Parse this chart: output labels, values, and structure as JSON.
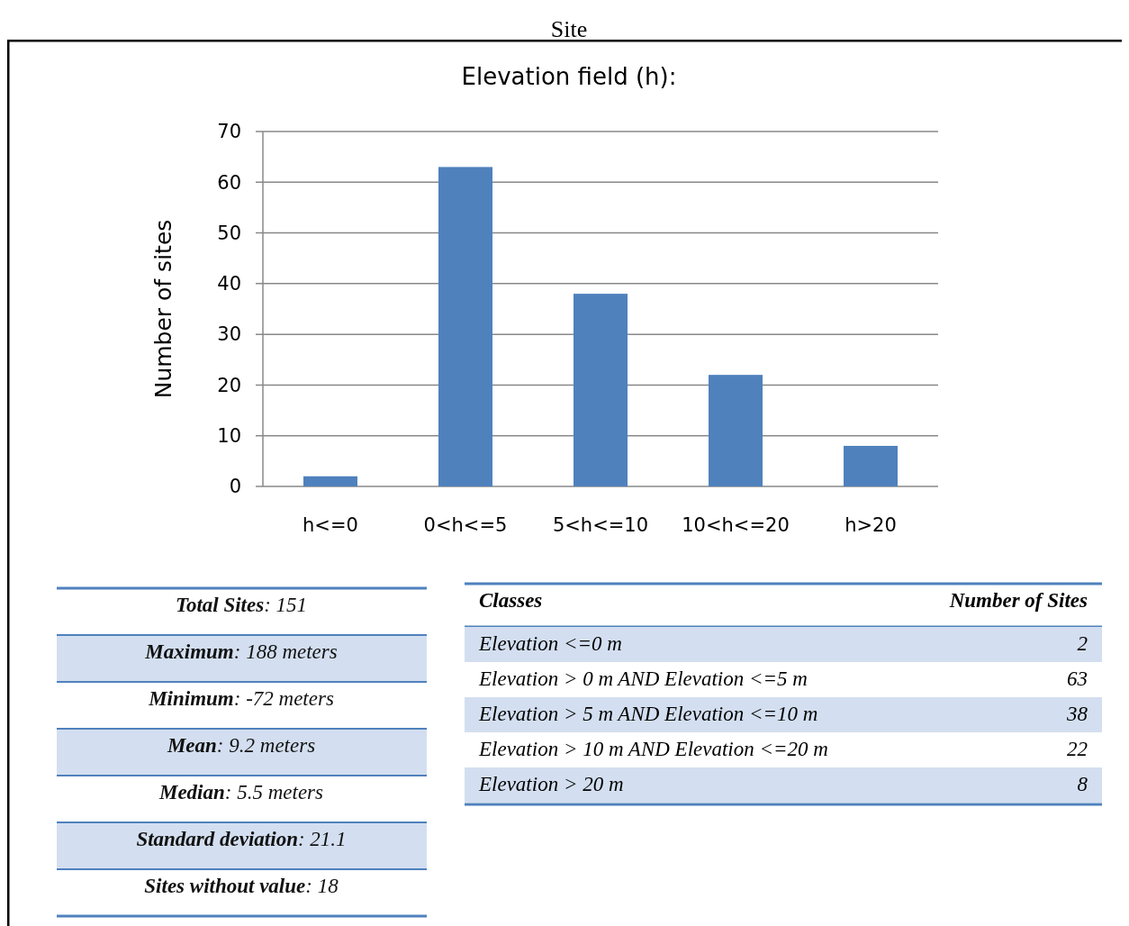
{
  "chart_data": {
    "type": "bar",
    "title": "Site",
    "subtitle": "Elevation field (h):",
    "ylabel": "Number of sites",
    "categories": [
      "h<=0",
      "0<h<=5",
      "5<h<=10",
      "10<h<=20",
      "h>20"
    ],
    "values": [
      2,
      63,
      38,
      22,
      8
    ],
    "color": "#4f81bd",
    "ylim": [
      0,
      70
    ],
    "yticks": [
      0,
      10,
      20,
      30,
      40,
      50,
      60,
      70
    ],
    "grid": "y",
    "annotations": [
      "Total Sites: 151",
      "Maximum: 188 meters",
      "Minimum: -72 meters",
      "Mean: 9.2 meters",
      "Median: 5.5 meters",
      "Standard deviation: 21.1",
      "Sites without value: 18",
      "Classes",
      "Number of Sites",
      "Elevation <=0 m",
      "Elevation > 0 m AND Elevation <=5 m",
      "Elevation > 5  m AND Elevation <=10 m",
      "Elevation > 10  m AND Elevation <=20 m",
      "Elevation > 20 m",
      "2",
      "63",
      "38",
      "22",
      "8"
    ]
  }
}
